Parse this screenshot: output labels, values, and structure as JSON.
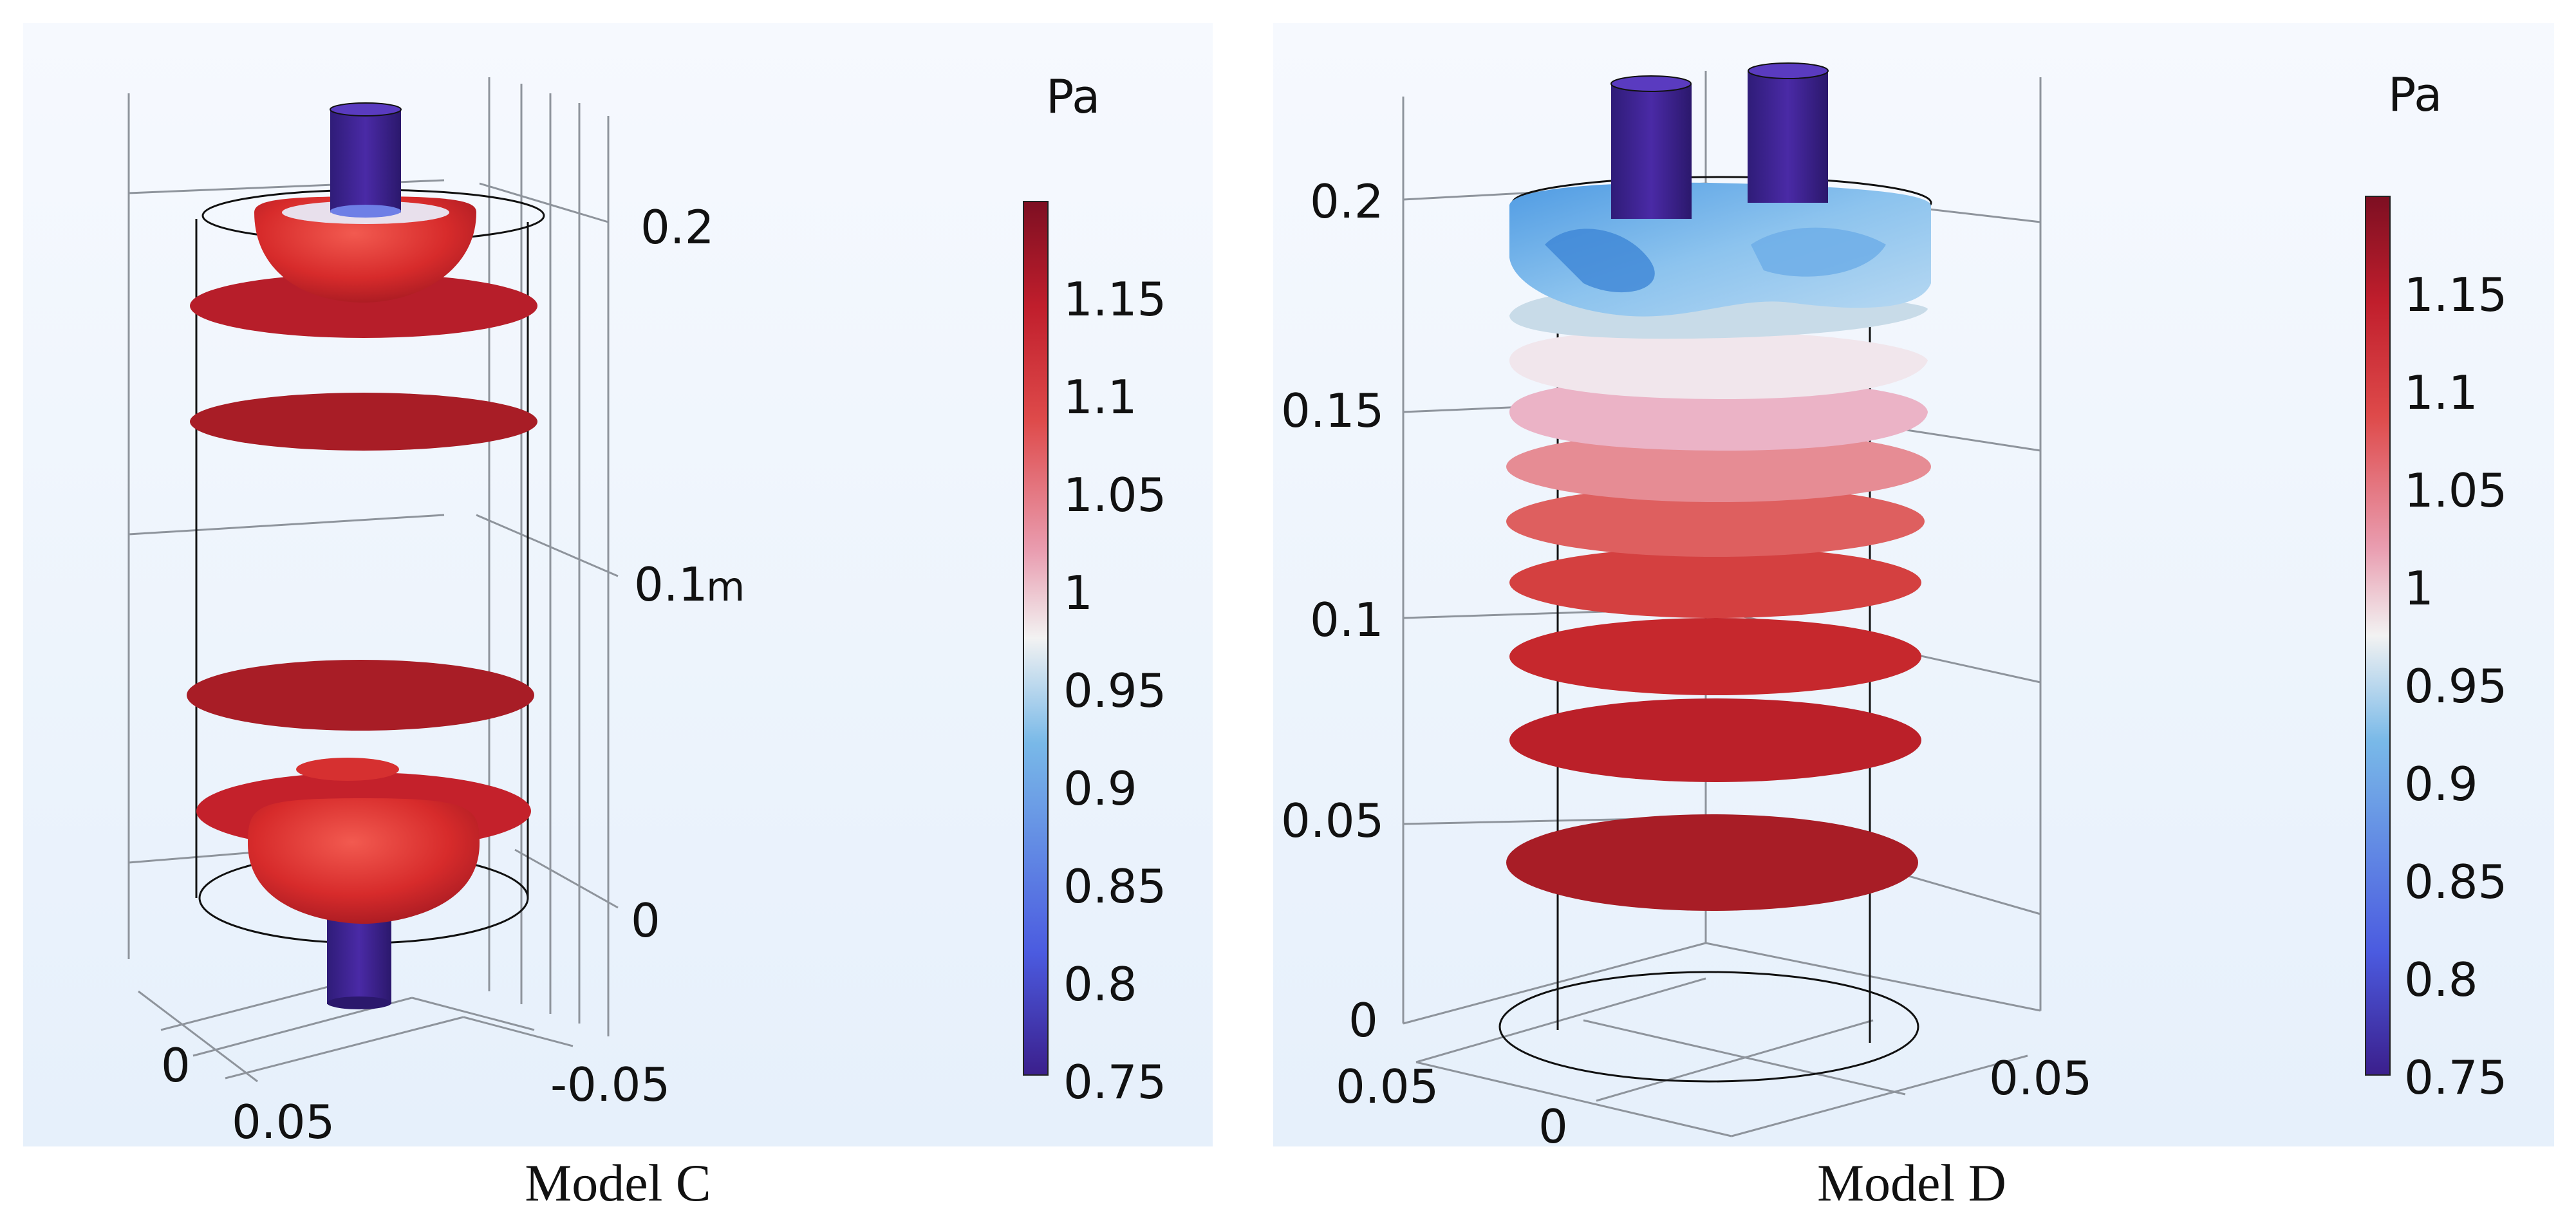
{
  "chart_data": [
    {
      "type": "other",
      "title": "Model C",
      "colorbar": {
        "unit": "Pa",
        "min": 0.75,
        "max": 1.2,
        "ticks": [
          "1.15",
          "1.1",
          "1.05",
          "1",
          "0.95",
          "0.9",
          "0.85",
          "0.8",
          "0.75"
        ],
        "colors": [
          "#3b1f8c",
          "#4b5be0",
          "#79b9e8",
          "#f2f2f2",
          "#e99db0",
          "#de4a4a",
          "#c01e2c",
          "#7d0f22"
        ]
      },
      "axis_labels": {
        "z_ticks": [
          "0.2",
          "0.1",
          "0"
        ],
        "z_unit": "m",
        "x_ticks": [
          "0",
          "0.05"
        ],
        "y_ticks": [
          "-0.05"
        ]
      },
      "isosurfaces": [
        "top-dome",
        "top-disc",
        "disc",
        "disc",
        "bottom-disc",
        "bottom-dome"
      ]
    },
    {
      "type": "other",
      "title": "Model D",
      "colorbar": {
        "unit": "Pa",
        "min": 0.75,
        "max": 1.2,
        "ticks": [
          "1.15",
          "1.1",
          "1.05",
          "1",
          "0.95",
          "0.9",
          "0.85",
          "0.8",
          "0.75"
        ],
        "colors": [
          "#3b1f8c",
          "#4b5be0",
          "#79b9e8",
          "#f2f2f2",
          "#e99db0",
          "#de4a4a",
          "#c01e2c",
          "#7d0f22"
        ]
      },
      "axis_labels": {
        "z_ticks": [
          "0.2",
          "0.15",
          "0.1",
          "0.05",
          "0"
        ],
        "x_ticks": [
          "0.05",
          "0"
        ],
        "y_ticks": [
          "0.05"
        ]
      },
      "isosurfaces": [
        "blue-swirl",
        "pale-blue",
        "white",
        "pink",
        "light-pink",
        "salmon",
        "light-red",
        "red",
        "red",
        "dark-red"
      ]
    }
  ]
}
